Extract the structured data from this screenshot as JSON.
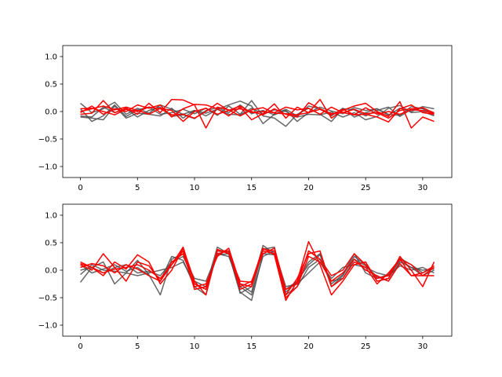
{
  "chart_data": [
    {
      "type": "line",
      "xlim": [
        -1.55,
        32.55
      ],
      "ylim": [
        -1.2,
        1.2
      ],
      "xticks": [
        0,
        5,
        10,
        15,
        20,
        25,
        30
      ],
      "yticks": [
        -1.0,
        -0.5,
        0.0,
        0.5,
        1.0
      ],
      "xtick_labels": [
        "0",
        "5",
        "10",
        "15",
        "20",
        "25",
        "30"
      ],
      "ytick_labels": [
        "−1.0",
        "−0.5",
        "0.0",
        "0.5",
        "1.0"
      ],
      "grid": false,
      "x": [
        0,
        1,
        2,
        3,
        4,
        5,
        6,
        7,
        8,
        9,
        10,
        11,
        12,
        13,
        14,
        15,
        16,
        17,
        18,
        19,
        20,
        21,
        22,
        23,
        24,
        25,
        26,
        27,
        28,
        29,
        30,
        31
      ],
      "series": [
        {
          "color": "#4d4d4d",
          "values": [
            0.15,
            -0.02,
            0.05,
            0.17,
            -0.05,
            0.06,
            -0.03,
            0.12,
            0.04,
            -0.05,
            0.02,
            -0.08,
            0.04,
            0.12,
            0.19,
            0.1,
            -0.22,
            -0.05,
            0.04,
            -0.08,
            0.1,
            0.05,
            -0.08,
            0.06,
            -0.1,
            -0.02,
            0.05,
            -0.07,
            0.06,
            0.0,
            0.09,
            0.05
          ]
        },
        {
          "color": "#4d4d4d",
          "values": [
            0.05,
            -0.18,
            -0.08,
            0.12,
            -0.09,
            0.03,
            0.08,
            -0.05,
            -0.02,
            0.04,
            -0.04,
            0.06,
            -0.07,
            0.1,
            -0.05,
            0.2,
            -0.08,
            -0.12,
            -0.27,
            -0.05,
            0.06,
            -0.05,
            -0.18,
            0.05,
            0.03,
            -0.08,
            0.02,
            0.08,
            -0.09,
            0.04,
            0.06,
            -0.02
          ]
        },
        {
          "color": "#4d4d4d",
          "values": [
            -0.08,
            -0.1,
            0.08,
            -0.02,
            0.05,
            -0.1,
            0.02,
            0.08,
            -0.09,
            -0.06,
            -0.13,
            0.02,
            0.07,
            -0.02,
            0.12,
            -0.04,
            0.02,
            -0.06,
            0.02,
            -0.18,
            -0.02,
            0.08,
            0.01,
            -0.04,
            0.07,
            0.02,
            0.05,
            -0.05,
            -0.07,
            0.09,
            0.05,
            -0.06
          ]
        },
        {
          "color": "#4d4d4d",
          "values": [
            -0.1,
            -0.12,
            -0.15,
            0.1,
            -0.12,
            -0.03,
            -0.05,
            -0.08,
            0.06,
            -0.12,
            0.02,
            -0.03,
            0.04,
            -0.05,
            -0.06,
            0.06,
            -0.04,
            0.03,
            0.0,
            -0.1,
            -0.05,
            -0.06,
            -0.01,
            -0.1,
            -0.02,
            -0.15,
            -0.09,
            0.06,
            0.11,
            -0.02,
            0.0,
            -0.08
          ]
        },
        {
          "color": "#ff0000",
          "values": [
            -0.05,
            -0.03,
            0.2,
            -0.02,
            0.06,
            -0.05,
            0.15,
            -0.02,
            0.22,
            0.21,
            0.12,
            -0.3,
            0.08,
            0.03,
            -0.08,
            0.03,
            0.07,
            -0.03,
            -0.04,
            -0.06,
            -0.02,
            0.22,
            -0.12,
            0.02,
            0.1,
            0.15,
            0.0,
            -0.09,
            0.18,
            -0.3,
            -0.1,
            -0.18
          ]
        },
        {
          "color": "#ff0000",
          "values": [
            -0.02,
            0.1,
            -0.05,
            0.05,
            0.0,
            0.12,
            0.06,
            0.12,
            -0.1,
            0.05,
            0.13,
            0.12,
            0.05,
            -0.08,
            0.08,
            -0.15,
            -0.04,
            0.14,
            -0.12,
            0.08,
            -0.02,
            0.04,
            -0.06,
            0.04,
            -0.06,
            0.07,
            -0.05,
            0.0,
            -0.05,
            0.03,
            0.02,
            -0.04
          ]
        },
        {
          "color": "#ff0000",
          "values": [
            0.0,
            0.05,
            0.1,
            0.03,
            0.08,
            0.02,
            -0.05,
            0.06,
            0.02,
            -0.18,
            0.0,
            0.06,
            -0.05,
            0.02,
            0.05,
            0.0,
            -0.06,
            0.05,
            -0.05,
            -0.1,
            0.16,
            0.05,
            -0.04,
            -0.02,
            -0.06,
            -0.05,
            -0.1,
            -0.19,
            0.05,
            0.12,
            -0.02,
            -0.05
          ]
        },
        {
          "color": "#ff0000",
          "values": [
            0.05,
            0.06,
            0.0,
            -0.06,
            0.04,
            0.0,
            0.08,
            0.05,
            -0.06,
            -0.05,
            -0.12,
            0.0,
            0.15,
            0.02,
            0.1,
            -0.02,
            0.0,
            -0.02,
            0.08,
            0.03,
            0.06,
            -0.05,
            0.08,
            -0.02,
            0.04,
            -0.04,
            -0.02,
            -0.12,
            0.02,
            0.05,
            0.07,
            -0.03
          ]
        }
      ]
    },
    {
      "type": "line",
      "xlim": [
        -1.55,
        32.55
      ],
      "ylim": [
        -1.2,
        1.2
      ],
      "xticks": [
        0,
        5,
        10,
        15,
        20,
        25,
        30
      ],
      "yticks": [
        -1.0,
        -0.5,
        0.0,
        0.5,
        1.0
      ],
      "xtick_labels": [
        "0",
        "5",
        "10",
        "15",
        "20",
        "25",
        "30"
      ],
      "ytick_labels": [
        "−1.0",
        "−0.5",
        "0.0",
        "0.5",
        "1.0"
      ],
      "grid": false,
      "x": [
        0,
        1,
        2,
        3,
        4,
        5,
        6,
        7,
        8,
        9,
        10,
        11,
        12,
        13,
        14,
        15,
        16,
        17,
        18,
        19,
        20,
        21,
        22,
        23,
        24,
        25,
        26,
        27,
        28,
        29,
        30,
        31
      ],
      "series": [
        {
          "color": "#4d4d4d",
          "values": [
            -0.22,
            0.05,
            0.15,
            -0.25,
            -0.05,
            0.18,
            -0.08,
            -0.45,
            0.2,
            0.3,
            -0.2,
            -0.3,
            0.42,
            0.3,
            -0.42,
            -0.3,
            0.45,
            0.3,
            -0.35,
            -0.2,
            0.15,
            0.3,
            -0.25,
            -0.08,
            0.3,
            -0.05,
            -0.15,
            -0.08,
            0.22,
            0.1,
            -0.05,
            0.05
          ]
        },
        {
          "color": "#4d4d4d",
          "values": [
            0.1,
            -0.05,
            0.02,
            0.1,
            -0.02,
            0.05,
            -0.1,
            -0.2,
            0.25,
            0.18,
            -0.3,
            -0.45,
            0.35,
            0.32,
            -0.25,
            -0.4,
            0.38,
            0.42,
            -0.45,
            -0.3,
            0.05,
            0.2,
            -0.2,
            -0.15,
            0.2,
            0.08,
            -0.12,
            -0.2,
            0.15,
            0.05,
            -0.1,
            0.0
          ]
        },
        {
          "color": "#4d4d4d",
          "values": [
            0.0,
            0.05,
            -0.05,
            0.05,
            0.1,
            -0.05,
            -0.02,
            -0.1,
            0.15,
            0.25,
            -0.15,
            -0.2,
            0.3,
            0.25,
            -0.3,
            -0.45,
            0.25,
            0.35,
            -0.3,
            -0.25,
            -0.05,
            0.15,
            -0.15,
            0.05,
            0.1,
            0.05,
            -0.05,
            -0.1,
            0.08,
            0.0,
            0.05,
            -0.05
          ]
        },
        {
          "color": "#4d4d4d",
          "values": [
            -0.08,
            0.1,
            0.0,
            -0.02,
            -0.05,
            -0.1,
            -0.05,
            0.0,
            0.05,
            0.15,
            -0.25,
            -0.35,
            0.28,
            0.3,
            -0.4,
            -0.55,
            0.3,
            0.28,
            -0.4,
            -0.2,
            0.1,
            0.28,
            -0.3,
            -0.1,
            0.25,
            0.1,
            -0.2,
            -0.15,
            0.18,
            0.05,
            0.0,
            0.02
          ]
        },
        {
          "color": "#ff0000",
          "values": [
            0.15,
            0.05,
            -0.1,
            0.15,
            0.02,
            0.28,
            0.15,
            -0.25,
            0.0,
            0.4,
            -0.2,
            -0.45,
            0.38,
            0.3,
            -0.2,
            -0.22,
            0.4,
            0.28,
            -0.55,
            -0.2,
            0.52,
            0.1,
            -0.45,
            -0.2,
            0.1,
            0.15,
            -0.2,
            -0.15,
            0.25,
            0.0,
            -0.3,
            0.15
          ]
        },
        {
          "color": "#ff0000",
          "values": [
            0.1,
            0.0,
            0.3,
            0.05,
            -0.2,
            0.15,
            0.08,
            -0.2,
            0.1,
            0.35,
            -0.35,
            -0.3,
            0.3,
            0.35,
            -0.35,
            -0.25,
            0.35,
            0.3,
            -0.45,
            -0.15,
            0.3,
            0.35,
            -0.3,
            -0.15,
            0.15,
            0.05,
            -0.25,
            -0.05,
            0.2,
            0.1,
            -0.1,
            0.05
          ]
        },
        {
          "color": "#ff0000",
          "values": [
            0.05,
            0.12,
            0.08,
            -0.05,
            0.1,
            0.02,
            -0.1,
            -0.2,
            0.15,
            0.3,
            -0.3,
            -0.25,
            0.25,
            0.4,
            -0.25,
            -0.3,
            0.38,
            0.35,
            -0.5,
            -0.3,
            0.25,
            0.15,
            -0.2,
            -0.05,
            0.2,
            0.0,
            -0.1,
            -0.2,
            0.12,
            -0.1,
            -0.05,
            0.08
          ]
        },
        {
          "color": "#ff0000",
          "values": [
            0.12,
            0.05,
            -0.05,
            0.02,
            0.05,
            0.1,
            0.0,
            -0.15,
            0.1,
            0.42,
            -0.25,
            -0.35,
            0.35,
            0.35,
            -0.3,
            -0.2,
            0.3,
            0.4,
            -0.35,
            -0.25,
            0.35,
            0.2,
            -0.1,
            0.0,
            0.3,
            0.1,
            -0.15,
            -0.1,
            0.2,
            -0.1,
            -0.1,
            -0.1
          ]
        }
      ]
    }
  ]
}
